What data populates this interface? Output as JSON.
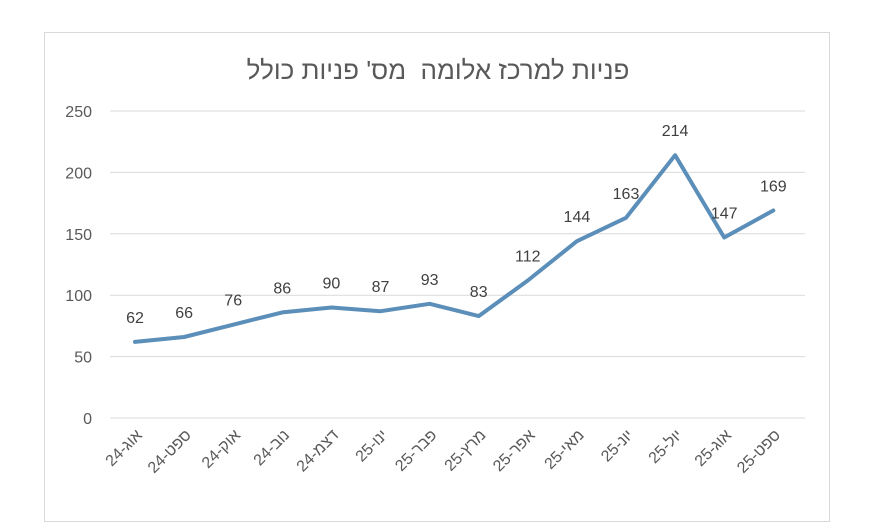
{
  "chart_data": {
    "type": "line",
    "title": "פניות למרכז אלומה  מס' פניות כולל",
    "xlabel": "",
    "ylabel": "",
    "categories": [
      "אוג-24",
      "ספט-24",
      "אוק-24",
      "נוב-24",
      "דצמ-24",
      "ינו-25",
      "פבר-25",
      "מרץ-25",
      "אפר-25",
      "מאי-25",
      "יונ-25",
      "יול-25",
      "אוג-25",
      "ספט-25"
    ],
    "series": [
      {
        "values": [
          62,
          66,
          76,
          86,
          90,
          87,
          93,
          83,
          112,
          144,
          163,
          214,
          147,
          169
        ]
      }
    ],
    "ylim": [
      0,
      250
    ],
    "yticks": [
      0,
      50,
      100,
      150,
      200,
      250
    ],
    "grid": true,
    "legend": "none",
    "line_color": "#5b8fb9",
    "grid_color": "#d9d9d9"
  }
}
